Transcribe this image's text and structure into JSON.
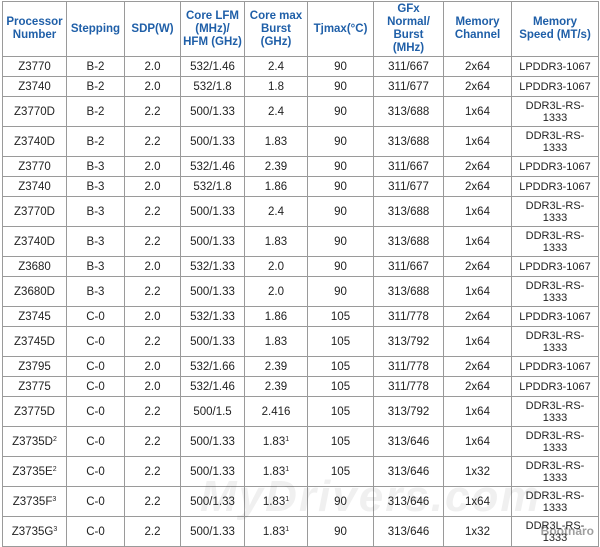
{
  "headers": [
    "Processor\nNumber",
    "Stepping",
    "SDP(W)",
    "Core LFM\n(MHz)/\nHFM (GHz)",
    "Core max\nBurst\n(GHz)",
    "Tjmax(°C)",
    "GFx\nNormal/\nBurst\n(MHz)",
    "Memory\nChannel",
    "Memory\nSpeed (MT/s)"
  ],
  "rows": [
    {
      "proc": "Z3770",
      "proc_sup": "",
      "step": "B-2",
      "sdp": "2.0",
      "lfm": "532/1.46",
      "burst": "2.4",
      "burst_sup": "",
      "tj": "90",
      "gfx": "311/667",
      "ch": "2x64",
      "speed": "LPDDR3-1067"
    },
    {
      "proc": "Z3740",
      "proc_sup": "",
      "step": "B-2",
      "sdp": "2.0",
      "lfm": "532/1.8",
      "burst": "1.8",
      "burst_sup": "",
      "tj": "90",
      "gfx": "311/677",
      "ch": "2x64",
      "speed": "LPDDR3-1067"
    },
    {
      "proc": "Z3770D",
      "proc_sup": "",
      "step": "B-2",
      "sdp": "2.2",
      "lfm": "500/1.33",
      "burst": "2.4",
      "burst_sup": "",
      "tj": "90",
      "gfx": "313/688",
      "ch": "1x64",
      "speed": "DDR3L-RS-\n1333"
    },
    {
      "proc": "Z3740D",
      "proc_sup": "",
      "step": "B-2",
      "sdp": "2.2",
      "lfm": "500/1.33",
      "burst": "1.83",
      "burst_sup": "",
      "tj": "90",
      "gfx": "313/688",
      "ch": "1x64",
      "speed": "DDR3L-RS-\n1333"
    },
    {
      "proc": "Z3770",
      "proc_sup": "",
      "step": "B-3",
      "sdp": "2.0",
      "lfm": "532/1.46",
      "burst": "2.39",
      "burst_sup": "",
      "tj": "90",
      "gfx": "311/667",
      "ch": "2x64",
      "speed": "LPDDR3-1067"
    },
    {
      "proc": "Z3740",
      "proc_sup": "",
      "step": "B-3",
      "sdp": "2.0",
      "lfm": "532/1.8",
      "burst": "1.86",
      "burst_sup": "",
      "tj": "90",
      "gfx": "311/677",
      "ch": "2x64",
      "speed": "LPDDR3-1067"
    },
    {
      "proc": "Z3770D",
      "proc_sup": "",
      "step": "B-3",
      "sdp": "2.2",
      "lfm": "500/1.33",
      "burst": "2.4",
      "burst_sup": "",
      "tj": "90",
      "gfx": "313/688",
      "ch": "1x64",
      "speed": "DDR3L-RS-\n1333"
    },
    {
      "proc": "Z3740D",
      "proc_sup": "",
      "step": "B-3",
      "sdp": "2.2",
      "lfm": "500/1.33",
      "burst": "1.83",
      "burst_sup": "",
      "tj": "90",
      "gfx": "313/688",
      "ch": "1x64",
      "speed": "DDR3L-RS-\n1333"
    },
    {
      "proc": "Z3680",
      "proc_sup": "",
      "step": "B-3",
      "sdp": "2.0",
      "lfm": "532/1.33",
      "burst": "2.0",
      "burst_sup": "",
      "tj": "90",
      "gfx": "311/667",
      "ch": "2x64",
      "speed": "LPDDR3-1067"
    },
    {
      "proc": "Z3680D",
      "proc_sup": "",
      "step": "B-3",
      "sdp": "2.2",
      "lfm": "500/1.33",
      "burst": "2.0",
      "burst_sup": "",
      "tj": "90",
      "gfx": "313/688",
      "ch": "1x64",
      "speed": "DDR3L-RS-\n1333"
    },
    {
      "proc": "Z3745",
      "proc_sup": "",
      "step": "C-0",
      "sdp": "2.0",
      "lfm": "532/1.33",
      "burst": "1.86",
      "burst_sup": "",
      "tj": "105",
      "gfx": "311/778",
      "ch": "2x64",
      "speed": "LPDDR3-1067"
    },
    {
      "proc": "Z3745D",
      "proc_sup": "",
      "step": "C-0",
      "sdp": "2.2",
      "lfm": "500/1.33",
      "burst": "1.83",
      "burst_sup": "",
      "tj": "105",
      "gfx": "313/792",
      "ch": "1x64",
      "speed": "DDR3L-RS-\n1333"
    },
    {
      "proc": "Z3795",
      "proc_sup": "",
      "step": "C-0",
      "sdp": "2.0",
      "lfm": "532/1.66",
      "burst": "2.39",
      "burst_sup": "",
      "tj": "105",
      "gfx": "311/778",
      "ch": "2x64",
      "speed": "LPDDR3-1067"
    },
    {
      "proc": "Z3775",
      "proc_sup": "",
      "step": "C-0",
      "sdp": "2.0",
      "lfm": "532/1.46",
      "burst": "2.39",
      "burst_sup": "",
      "tj": "105",
      "gfx": "311/778",
      "ch": "2x64",
      "speed": "LPDDR3-1067"
    },
    {
      "proc": "Z3775D",
      "proc_sup": "",
      "step": "C-0",
      "sdp": "2.2",
      "lfm": "500/1.5",
      "burst": "2.416",
      "burst_sup": "",
      "tj": "105",
      "gfx": "313/792",
      "ch": "1x64",
      "speed": "DDR3L-RS-\n1333"
    },
    {
      "proc": "Z3735D",
      "proc_sup": "2",
      "step": "C-0",
      "sdp": "2.2",
      "lfm": "500/1.33",
      "burst": "1.83",
      "burst_sup": "1",
      "tj": "105",
      "gfx": "313/646",
      "ch": "1x64",
      "speed": "DDR3L-RS-\n1333"
    },
    {
      "proc": "Z3735E",
      "proc_sup": "2",
      "step": "C-0",
      "sdp": "2.2",
      "lfm": "500/1.33",
      "burst": "1.83",
      "burst_sup": "1",
      "tj": "105",
      "gfx": "313/646",
      "ch": "1x32",
      "speed": "DDR3L-RS-\n1333"
    },
    {
      "proc": "Z3735F",
      "proc_sup": "3",
      "step": "C-0",
      "sdp": "2.2",
      "lfm": "500/1.33",
      "burst": "1.83",
      "burst_sup": "1",
      "tj": "90",
      "gfx": "313/646",
      "ch": "1x64",
      "speed": "DDR3L-RS-\n1333"
    },
    {
      "proc": "Z3735G",
      "proc_sup": "3",
      "step": "C-0",
      "sdp": "2.2",
      "lfm": "500/1.33",
      "burst": "1.83",
      "burst_sup": "1",
      "tj": "90",
      "gfx": "313/646",
      "ch": "1x32",
      "speed": "DDR3L-RS-\n1333"
    }
  ],
  "watermark": "MyDrivers.com",
  "corner_mark": "Bootnaro",
  "colors": {
    "header_text": "#1f5fa8",
    "border": "#9a9a9a",
    "body_text": "#222222"
  }
}
